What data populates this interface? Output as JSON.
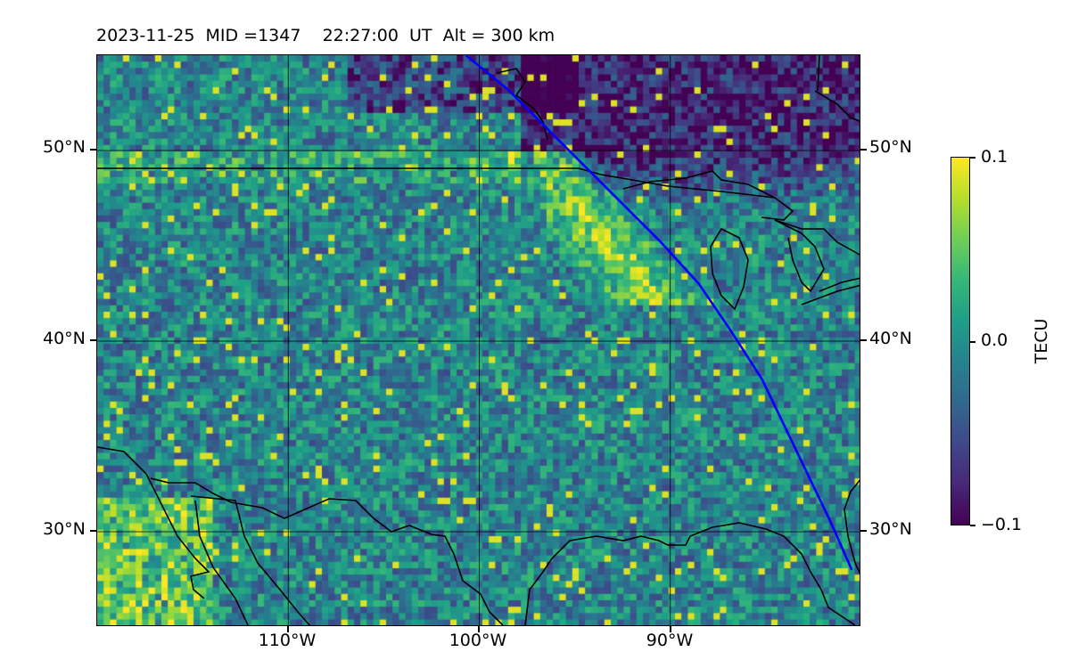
{
  "header": {
    "title": "2023-11-25  MID =1347    22:27:00  UT  Alt = 300 km"
  },
  "map": {
    "lat_range": [
      25,
      55
    ],
    "lon_range": [
      -120,
      -80
    ],
    "lat_ticks": [
      {
        "value": 50,
        "label": "50°N"
      },
      {
        "value": 40,
        "label": "40°N"
      },
      {
        "value": 30,
        "label": "30°N"
      }
    ],
    "lon_ticks": [
      {
        "value": -110,
        "label": "110°W"
      },
      {
        "value": -100,
        "label": "100°W"
      },
      {
        "value": -90,
        "label": "90°W"
      }
    ],
    "gridlines": true,
    "track_color": "#0000ff",
    "coastline_color": "#000000",
    "satellite_track": [
      [
        -100.7,
        55
      ],
      [
        -98.5,
        53.2
      ],
      [
        -96.5,
        51.2
      ],
      [
        -94.5,
        49.2
      ],
      [
        -92.5,
        47.2
      ],
      [
        -90.5,
        45.2
      ],
      [
        -88.5,
        43
      ],
      [
        -86.8,
        40.5
      ],
      [
        -85.2,
        38
      ],
      [
        -84,
        35.5
      ],
      [
        -82.8,
        33
      ],
      [
        -81.6,
        30.5
      ],
      [
        -80.5,
        28
      ]
    ]
  },
  "colorbar": {
    "label": "TECU",
    "min": -0.1,
    "max": 0.1,
    "colormap": "viridis",
    "ticks": [
      {
        "value": 0.1,
        "label": "0.1"
      },
      {
        "value": 0.0,
        "label": "0.0"
      },
      {
        "value": -0.1,
        "label": "−0.1"
      }
    ]
  }
}
